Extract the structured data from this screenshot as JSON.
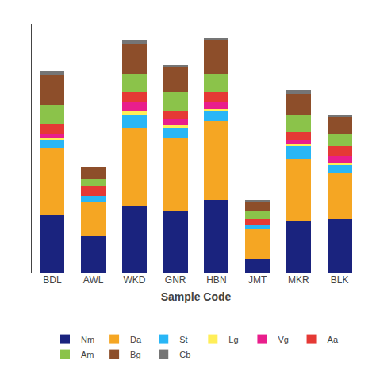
{
  "chart_data": {
    "type": "bar",
    "stacked": true,
    "xlabel": "Sample Code",
    "categories": [
      "BDL",
      "AWL",
      "WKD",
      "GNR",
      "HBN",
      "JMT",
      "MKR",
      "BLK"
    ],
    "series": [
      {
        "name": "Nm",
        "color": "#1a237e",
        "values": [
          28,
          18,
          32,
          30,
          35,
          7,
          25,
          26
        ]
      },
      {
        "name": "Da",
        "color": "#f5a623",
        "values": [
          32,
          16,
          38,
          35,
          38,
          14,
          30,
          22
        ]
      },
      {
        "name": "St",
        "color": "#29b6f6",
        "values": [
          4,
          3,
          6,
          5,
          5,
          2,
          6,
          4
        ]
      },
      {
        "name": "Lg",
        "color": "#ffee58",
        "values": [
          1,
          0,
          2,
          1,
          1,
          0,
          1,
          1
        ]
      },
      {
        "name": "Vg",
        "color": "#e91e8c",
        "values": [
          2,
          0,
          4,
          3,
          3,
          0,
          2,
          3
        ]
      },
      {
        "name": "Aa",
        "color": "#e53935",
        "values": [
          5,
          5,
          5,
          4,
          5,
          3,
          4,
          5
        ]
      },
      {
        "name": "Am",
        "color": "#8bc34a",
        "values": [
          9,
          3,
          9,
          9,
          9,
          4,
          8,
          6
        ]
      },
      {
        "name": "Bg",
        "color": "#8d4e2a",
        "values": [
          14,
          6,
          14,
          12,
          16,
          4,
          10,
          8
        ]
      },
      {
        "name": "Cb",
        "color": "#757575",
        "values": [
          2,
          0,
          2,
          1,
          1,
          1,
          2,
          1
        ]
      }
    ],
    "ylim": [
      0,
      120
    ],
    "yticks": [],
    "tick_labels": "x",
    "grid": false,
    "legend": "bottom"
  }
}
